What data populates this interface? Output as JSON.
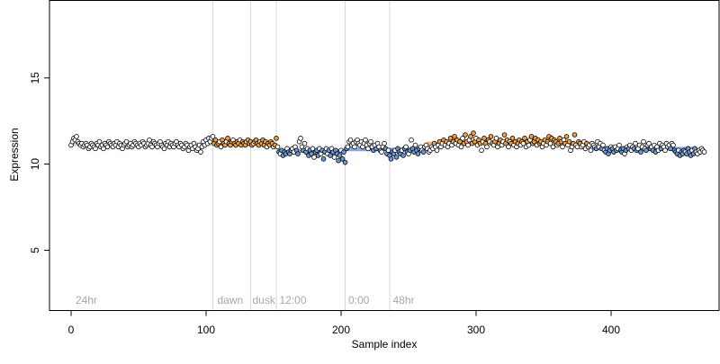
{
  "chart_data": {
    "type": "scatter",
    "xlabel": "Sample index",
    "ylabel": "Expression",
    "xlim": [
      -16,
      480
    ],
    "ylim": [
      1.5,
      19.5
    ],
    "x_ticks": [
      0,
      100,
      200,
      300,
      400
    ],
    "y_ticks": [
      5,
      10,
      15
    ],
    "colors": {
      "point_stroke": "#000000",
      "high": "#f0a040",
      "low": "#6a9ad8",
      "mid": "#ffffff",
      "trend_high": "#e8b070",
      "trend_low": "#7aa0e0",
      "divider": "#d8d8d8",
      "annotation": "#a8a8a8",
      "axis": "#000000"
    },
    "dividers": [
      105,
      133,
      152,
      203,
      236
    ],
    "annotations": [
      {
        "x": 2,
        "text": "24hr"
      },
      {
        "x": 107,
        "text": "dawn"
      },
      {
        "x": 133,
        "text": "dusk"
      },
      {
        "x": 153,
        "text": "12:00"
      },
      {
        "x": 204,
        "text": "0:00"
      },
      {
        "x": 237,
        "text": "48hr"
      }
    ],
    "segments": [
      {
        "x": [
          0,
          104
        ],
        "y": 11.15,
        "color": "mixed",
        "level": 0
      },
      {
        "x": [
          105,
          152
        ],
        "y": 11.15,
        "color": "high",
        "level": 1
      },
      {
        "x": [
          153,
          203
        ],
        "y": 10.75,
        "color": "low",
        "level": -1
      },
      {
        "x": [
          204,
          262
        ],
        "y": 10.85,
        "color": "low",
        "level": -1
      },
      {
        "x": [
          263,
          385
        ],
        "y": 11.2,
        "color": "high",
        "level": 1
      },
      {
        "x": [
          386,
          462
        ],
        "y": 10.9,
        "color": "low",
        "level": -1
      }
    ],
    "points_note": "462 samples, each y value sampled approximately from the plotted scatter",
    "y": [
      11.1,
      11.3,
      11.5,
      11.4,
      11.6,
      11.3,
      11.2,
      11.1,
      11.2,
      11.0,
      11.1,
      11.2,
      11.1,
      10.9,
      11.0,
      11.2,
      11.1,
      11.0,
      10.9,
      11.2,
      11.1,
      11.3,
      11.0,
      11.1,
      10.9,
      11.2,
      11.1,
      11.0,
      11.3,
      11.2,
      11.1,
      11.0,
      11.2,
      11.1,
      11.3,
      11.0,
      11.2,
      11.1,
      10.9,
      11.1,
      11.2,
      11.3,
      11.0,
      11.1,
      11.2,
      11.0,
      11.1,
      11.3,
      11.2,
      11.1,
      11.0,
      11.2,
      11.1,
      11.3,
      11.2,
      11.0,
      11.1,
      11.2,
      11.4,
      11.1,
      11.0,
      11.3,
      11.2,
      11.1,
      11.0,
      11.2,
      11.3,
      11.1,
      11.0,
      10.9,
      11.2,
      11.1,
      11.3,
      11.0,
      11.2,
      11.1,
      11.0,
      11.2,
      11.3,
      11.1,
      11.0,
      11.2,
      11.1,
      10.9,
      11.0,
      11.2,
      11.1,
      10.8,
      11.0,
      11.1,
      10.9,
      11.2,
      11.0,
      10.8,
      10.9,
      11.1,
      10.7,
      11.0,
      11.3,
      11.1,
      11.4,
      11.2,
      11.5,
      11.3,
      11.5,
      11.6,
      11.2,
      11.4,
      11.1,
      11.2,
      11.3,
      11.0,
      11.4,
      11.2,
      11.1,
      11.3,
      11.5,
      11.2,
      11.1,
      11.3,
      11.4,
      11.2,
      11.1,
      11.3,
      11.2,
      11.4,
      11.1,
      11.3,
      11.2,
      11.1,
      11.3,
      11.4,
      11.2,
      11.3,
      11.1,
      11.2,
      11.3,
      11.4,
      11.2,
      11.1,
      11.3,
      11.2,
      11.4,
      11.1,
      11.3,
      11.0,
      11.2,
      11.1,
      11.3,
      11.2,
      11.0,
      11.1,
      11.5,
      11.0,
      10.7,
      10.6,
      10.8,
      10.5,
      10.7,
      10.6,
      10.9,
      10.7,
      10.6,
      10.8,
      10.9,
      10.7,
      11.0,
      10.8,
      10.6,
      11.3,
      11.5,
      11.0,
      10.8,
      11.2,
      10.7,
      10.9,
      10.5,
      10.8,
      10.6,
      10.9,
      10.4,
      10.7,
      10.8,
      10.5,
      10.9,
      10.6,
      10.8,
      10.3,
      10.7,
      10.9,
      10.6,
      10.8,
      10.5,
      10.9,
      10.7,
      10.4,
      10.8,
      10.6,
      10.2,
      10.5,
      10.8,
      10.3,
      10.7,
      10.1,
      10.9,
      11.0,
      11.3,
      11.4,
      11.1,
      11.2,
      11.0,
      11.3,
      11.4,
      11.2,
      11.1,
      11.3,
      11.0,
      11.2,
      11.4,
      11.1,
      10.9,
      11.2,
      11.3,
      11.0,
      10.8,
      11.1,
      10.9,
      11.2,
      11.0,
      10.8,
      10.7,
      11.0,
      11.2,
      10.9,
      10.6,
      10.8,
      10.5,
      10.3,
      10.7,
      10.6,
      10.8,
      10.4,
      10.9,
      10.7,
      10.6,
      10.8,
      10.5,
      10.9,
      11.0,
      10.7,
      10.6,
      10.8,
      11.4,
      10.9,
      10.7,
      11.1,
      10.8,
      10.6,
      10.9,
      11.0,
      10.8,
      10.7,
      11.0,
      11.1,
      10.9,
      10.7,
      10.8,
      11.0,
      10.9,
      11.2,
      11.0,
      10.8,
      11.1,
      11.3,
      11.0,
      11.2,
      11.4,
      11.1,
      11.3,
      11.0,
      11.2,
      11.5,
      11.1,
      11.3,
      11.6,
      11.2,
      11.4,
      11.1,
      11.3,
      11.0,
      11.5,
      11.2,
      11.7,
      11.3,
      11.1,
      11.4,
      11.6,
      11.2,
      11.8,
      11.3,
      11.5,
      11.1,
      11.4,
      11.2,
      10.8,
      11.3,
      11.5,
      11.2,
      11.0,
      11.4,
      11.3,
      11.6,
      11.2,
      11.1,
      11.3,
      11.5,
      11.0,
      11.2,
      11.4,
      11.1,
      11.3,
      11.7,
      11.2,
      11.4,
      11.0,
      11.3,
      11.2,
      11.5,
      11.1,
      11.3,
      11.0,
      11.2,
      11.4,
      11.1,
      11.3,
      11.2,
      11.5,
      11.0,
      11.3,
      11.1,
      11.4,
      11.6,
      11.2,
      11.3,
      11.5,
      11.1,
      11.4,
      11.2,
      11.3,
      11.0,
      11.2,
      11.4,
      11.1,
      11.3,
      11.6,
      11.2,
      11.5,
      11.0,
      11.4,
      11.3,
      11.1,
      11.2,
      11.5,
      11.3,
      11.0,
      11.4,
      11.2,
      11.6,
      11.1,
      11.3,
      10.8,
      11.0,
      11.2,
      11.7,
      11.1,
      11.0,
      11.3,
      11.2,
      11.0,
      11.1,
      11.3,
      10.9,
      11.2,
      11.0,
      11.1,
      10.8,
      11.2,
      11.1,
      11.0,
      10.9,
      11.3,
      11.0,
      11.2,
      10.9,
      11.1,
      10.8,
      10.7,
      10.9,
      10.6,
      10.8,
      11.0,
      10.9,
      10.7,
      11.0,
      10.8,
      10.9,
      11.1,
      10.8,
      10.7,
      10.9,
      10.6,
      10.8,
      11.0,
      10.9,
      11.1,
      10.8,
      11.0,
      10.9,
      11.2,
      10.8,
      10.9,
      11.1,
      10.7,
      11.0,
      11.3,
      10.9,
      10.8,
      11.1,
      11.2,
      10.9,
      11.0,
      10.8,
      11.1,
      10.7,
      11.0,
      10.8,
      11.2,
      10.9,
      11.1,
      11.0,
      10.8,
      11.2,
      11.0,
      11.1,
      10.9,
      11.2,
      11.1,
      10.8,
      10.7,
      10.6,
      10.8,
      10.5,
      10.7,
      10.6,
      10.8,
      10.7,
      10.6,
      10.9,
      10.7,
      10.5,
      10.8,
      10.6,
      10.9,
      10.7,
      10.6,
      10.8,
      10.7,
      10.9,
      10.8,
      10.7
    ]
  }
}
